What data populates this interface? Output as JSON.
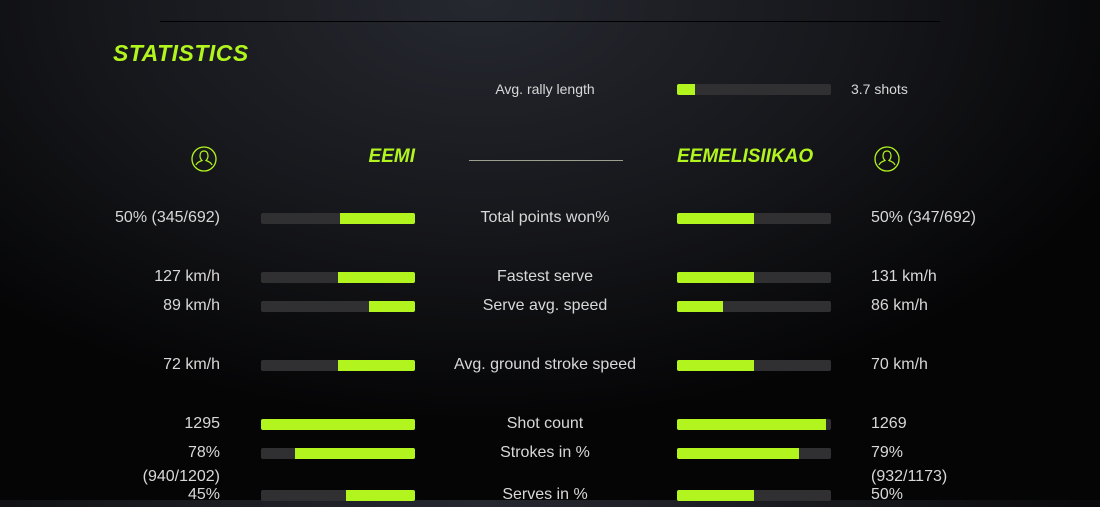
{
  "title": "STATISTICS",
  "accent": "#b2f51e",
  "rally": {
    "label": "Avg. rally length",
    "value": "3.7 shots",
    "fill": 0.12
  },
  "players": {
    "left": {
      "name": "EEMI",
      "icon": "user-circle-icon"
    },
    "right": {
      "name": "EEMELISIIKAO",
      "icon": "user-circle-icon"
    }
  },
  "rows": [
    {
      "label": "Total points won%",
      "left": "50% (345/692)",
      "right": "50% (347/692)",
      "left_fill": 0.49,
      "right_fill": 0.5
    },
    {
      "label": "Fastest serve",
      "left": "127 km/h",
      "right": "131 km/h",
      "left_fill": 0.5,
      "right_fill": 0.5
    },
    {
      "label": "Serve avg. speed",
      "left": "89 km/h",
      "right": "86 km/h",
      "left_fill": 0.3,
      "right_fill": 0.3
    },
    {
      "label": "Avg. ground stroke speed",
      "left": "72 km/h",
      "right": "70 km/h",
      "left_fill": 0.5,
      "right_fill": 0.5
    },
    {
      "label": "Shot count",
      "left": "1295",
      "right": "1269",
      "left_fill": 1.0,
      "right_fill": 0.97
    },
    {
      "label": "Strokes in %",
      "left": "78% (940/1202)",
      "right": "79% (932/1173)",
      "left_fill": 0.78,
      "right_fill": 0.79
    },
    {
      "label": "Serves in %",
      "left": "45%",
      "right": "50%",
      "left_fill": 0.45,
      "right_fill": 0.5
    }
  ]
}
